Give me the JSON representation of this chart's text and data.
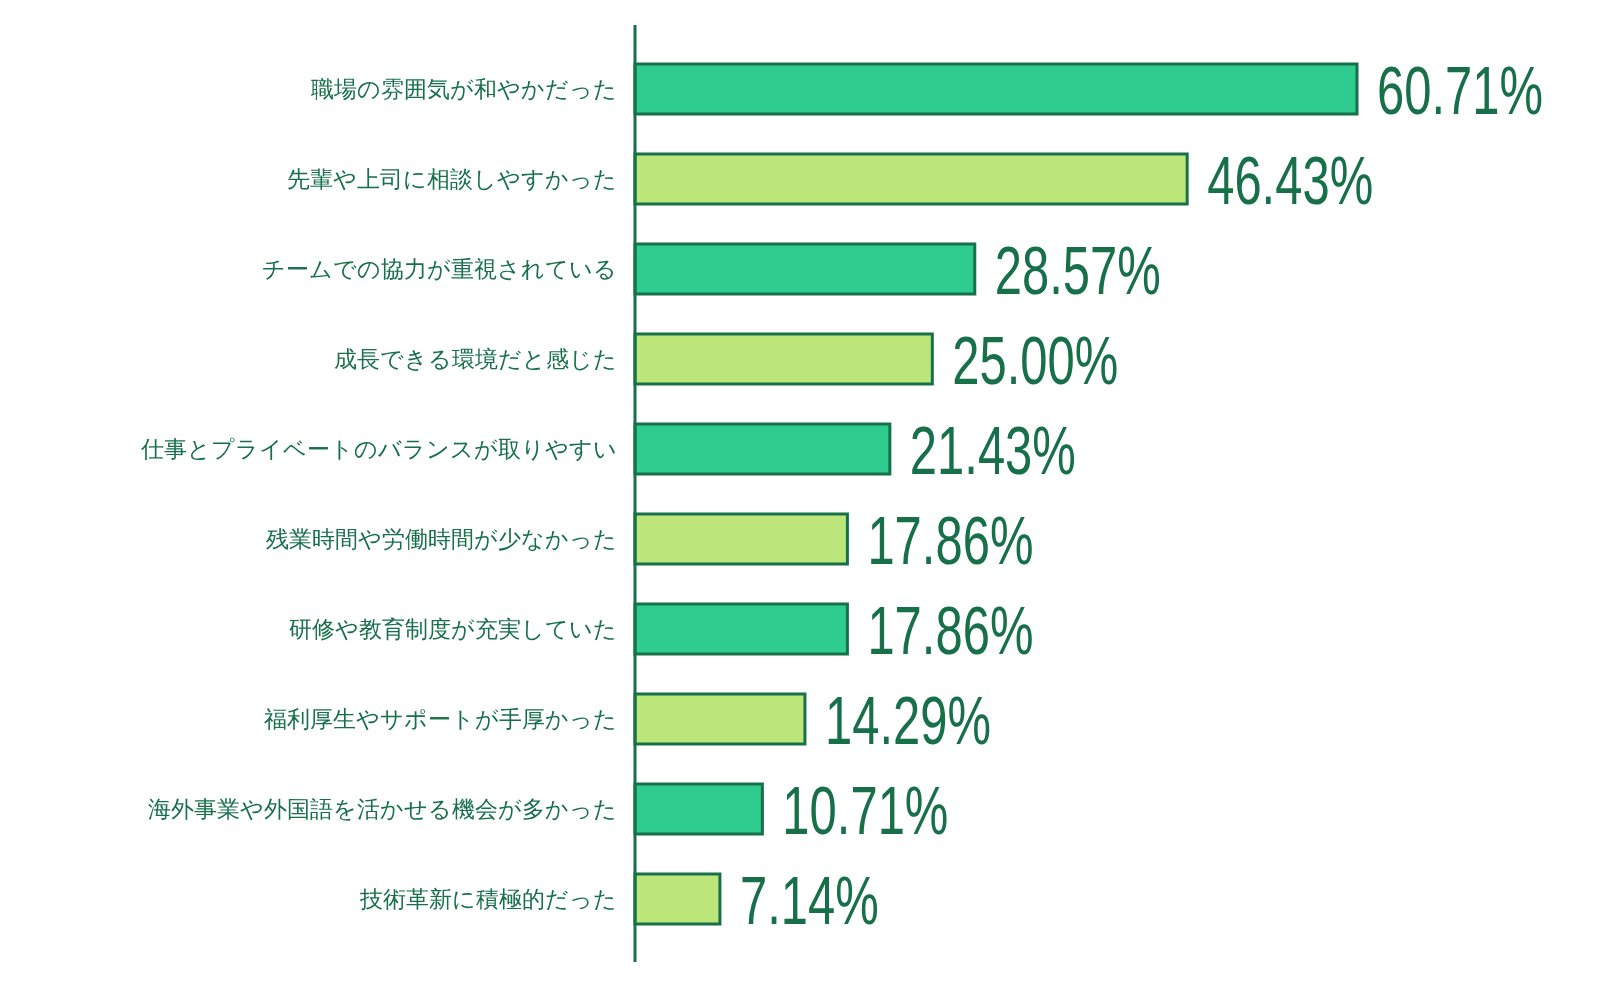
{
  "chart_data": {
    "type": "bar",
    "orientation": "horizontal",
    "categories": [
      "職場の雰囲気が和やかだった",
      "先輩や上司に相談しやすかった",
      "チームでの協力が重視されている",
      "成長できる環境だと感じた",
      "仕事とプライベートのバランスが取りやすい",
      "残業時間や労働時間が少なかった",
      "研修や教育制度が充実していた",
      "福利厚生やサポートが手厚かった",
      "海外事業や外国語を活かせる機会が多かった",
      "技術革新に積極的だった"
    ],
    "values": [
      60.71,
      46.43,
      28.57,
      25.0,
      21.43,
      17.86,
      17.86,
      14.29,
      10.71,
      7.14
    ],
    "value_labels": [
      "60.71%",
      "46.43%",
      "28.57%",
      "25.00%",
      "21.43%",
      "17.86%",
      "17.86%",
      "14.29%",
      "10.71%",
      "7.14%"
    ],
    "colors": [
      "#2ecc8f",
      "#bde67a",
      "#2ecc8f",
      "#bde67a",
      "#2ecc8f",
      "#bde67a",
      "#2ecc8f",
      "#bde67a",
      "#2ecc8f",
      "#bde67a"
    ]
  }
}
